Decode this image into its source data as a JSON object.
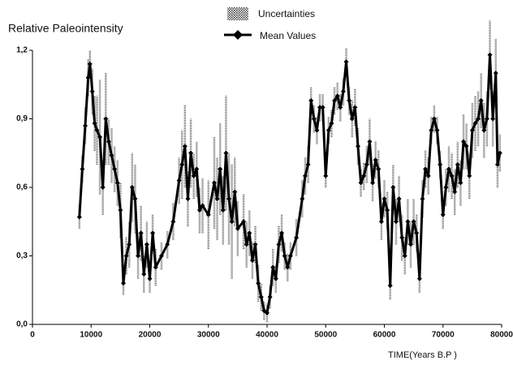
{
  "chart_data": {
    "type": "line",
    "title": "Relative Paleointensity",
    "x_label": "TIME(Years B.P )",
    "x": [
      8000,
      8500,
      9000,
      9500,
      9800,
      10200,
      10600,
      11000,
      11500,
      12000,
      12500,
      13000,
      13500,
      14000,
      14500,
      15000,
      15500,
      16000,
      16500,
      17000,
      17500,
      18000,
      18500,
      19000,
      19500,
      20000,
      20500,
      21000,
      22000,
      23000,
      24000,
      25000,
      25500,
      26000,
      26500,
      27000,
      27500,
      28000,
      28500,
      29000,
      30000,
      31000,
      31500,
      32000,
      32500,
      33000,
      33500,
      34000,
      34500,
      35000,
      36000,
      36500,
      37000,
      37500,
      38000,
      38500,
      39000,
      39500,
      40000,
      40500,
      41000,
      41500,
      42000,
      42500,
      43000,
      43500,
      44000,
      45000,
      46000,
      46500,
      47000,
      47500,
      48000,
      48500,
      49000,
      49500,
      50000,
      50500,
      51000,
      51500,
      52000,
      52500,
      53000,
      53500,
      54000,
      54500,
      55000,
      55500,
      56000,
      56500,
      57000,
      57500,
      58000,
      58500,
      59000,
      59500,
      60000,
      60500,
      61000,
      61500,
      62000,
      62500,
      63000,
      63500,
      64000,
      64500,
      65000,
      65500,
      66000,
      66500,
      67000,
      67500,
      68000,
      68500,
      69000,
      69500,
      70000,
      70500,
      71000,
      71500,
      72000,
      72500,
      73000,
      73500,
      74000,
      74500,
      75000,
      75500,
      76000,
      76500,
      77000,
      77500,
      78000,
      78500,
      79000,
      79300,
      79700
    ],
    "series": [
      {
        "name": "Mean Values",
        "color": "#000000",
        "error_label": "Uncertainties",
        "error_color": "#666666",
        "values": [
          0.47,
          0.68,
          0.87,
          1.08,
          1.14,
          1.02,
          0.88,
          0.85,
          0.82,
          0.6,
          0.9,
          0.8,
          0.74,
          0.68,
          0.62,
          0.5,
          0.18,
          0.3,
          0.35,
          0.6,
          0.55,
          0.3,
          0.4,
          0.22,
          0.35,
          0.2,
          0.4,
          0.25,
          0.3,
          0.35,
          0.45,
          0.63,
          0.7,
          0.78,
          0.55,
          0.75,
          0.65,
          0.68,
          0.5,
          0.52,
          0.48,
          0.62,
          0.55,
          0.68,
          0.5,
          0.75,
          0.55,
          0.45,
          0.58,
          0.42,
          0.45,
          0.35,
          0.4,
          0.28,
          0.35,
          0.18,
          0.12,
          0.06,
          0.05,
          0.12,
          0.25,
          0.2,
          0.35,
          0.4,
          0.3,
          0.25,
          0.3,
          0.38,
          0.55,
          0.65,
          0.7,
          0.98,
          0.9,
          0.85,
          0.95,
          0.95,
          0.65,
          0.85,
          0.88,
          0.98,
          1.0,
          0.95,
          1.02,
          1.15,
          0.98,
          0.9,
          0.95,
          0.78,
          0.62,
          0.65,
          0.7,
          0.8,
          0.62,
          0.72,
          0.68,
          0.45,
          0.55,
          0.5,
          0.17,
          0.6,
          0.45,
          0.55,
          0.38,
          0.3,
          0.45,
          0.35,
          0.45,
          0.4,
          0.2,
          0.55,
          0.68,
          0.65,
          0.85,
          0.9,
          0.85,
          0.7,
          0.48,
          0.6,
          0.68,
          0.65,
          0.58,
          0.7,
          0.62,
          0.8,
          0.78,
          0.65,
          0.85,
          0.88,
          0.9,
          0.98,
          0.85,
          0.9,
          1.18,
          0.9,
          1.1,
          0.7,
          0.75
        ],
        "errors": [
          0.05,
          0.06,
          0.08,
          0.08,
          0.06,
          0.1,
          0.12,
          0.15,
          0.25,
          0.12,
          0.2,
          0.1,
          0.12,
          0.1,
          0.1,
          0.12,
          0.05,
          0.08,
          0.1,
          0.15,
          0.15,
          0.1,
          0.12,
          0.08,
          0.1,
          0.06,
          0.08,
          0.08,
          0.06,
          0.06,
          0.08,
          0.1,
          0.15,
          0.18,
          0.12,
          0.15,
          0.1,
          0.12,
          0.1,
          0.12,
          0.15,
          0.2,
          0.18,
          0.2,
          0.15,
          0.25,
          0.2,
          0.25,
          0.15,
          0.12,
          0.12,
          0.1,
          0.1,
          0.08,
          0.08,
          0.08,
          0.06,
          0.04,
          0.04,
          0.05,
          0.08,
          0.06,
          0.08,
          0.08,
          0.06,
          0.06,
          0.06,
          0.08,
          0.08,
          0.08,
          0.08,
          0.06,
          0.06,
          0.06,
          0.06,
          0.06,
          0.05,
          0.06,
          0.06,
          0.06,
          0.06,
          0.06,
          0.06,
          0.06,
          0.06,
          0.08,
          0.08,
          0.08,
          0.06,
          0.06,
          0.08,
          0.1,
          0.08,
          0.08,
          0.08,
          0.08,
          0.08,
          0.08,
          0.06,
          0.1,
          0.1,
          0.1,
          0.1,
          0.08,
          0.1,
          0.1,
          0.1,
          0.08,
          0.06,
          0.08,
          0.08,
          0.08,
          0.06,
          0.06,
          0.06,
          0.06,
          0.06,
          0.08,
          0.1,
          0.1,
          0.1,
          0.1,
          0.1,
          0.12,
          0.1,
          0.1,
          0.12,
          0.12,
          0.12,
          0.12,
          0.12,
          0.12,
          0.15,
          0.12,
          0.15,
          0.1,
          0.08
        ]
      }
    ],
    "xlim": [
      0,
      80000
    ],
    "xticks": [
      0,
      10000,
      20000,
      30000,
      40000,
      50000,
      60000,
      70000,
      80000
    ],
    "ylim": [
      0,
      1.2
    ],
    "yticks": [
      {
        "value": 0,
        "label": "0,0"
      },
      {
        "value": 0.3,
        "label": "0,3"
      },
      {
        "value": 0.6,
        "label": "0,6"
      },
      {
        "value": 0.9,
        "label": "0,9"
      },
      {
        "value": 1.2,
        "label": "1,2"
      }
    ]
  }
}
